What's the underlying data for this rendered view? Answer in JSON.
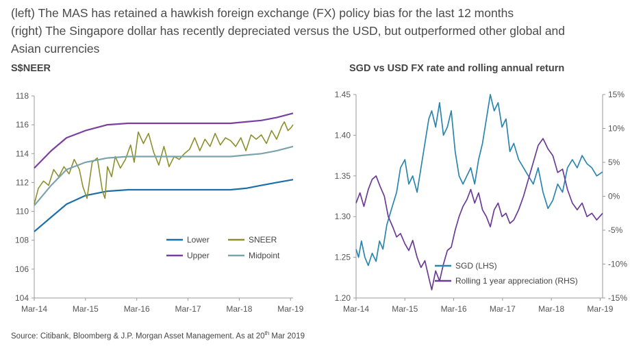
{
  "headline": {
    "line1": "(left) The MAS has retained a hawkish foreign exchange (FX) policy bias for the last 12 months",
    "line2": "(right) The Singapore dollar has recently depreciated versus the USD, but outperformed other global and",
    "line3": "Asian currencies"
  },
  "source": {
    "text": "Source: Citibank, Bloomberg & J.P. Morgan Asset Management. As at 20",
    "superscript": "th",
    "suffix": " Mar 2019"
  },
  "colors": {
    "lower": "#1b6fa8",
    "upper": "#7a3f9e",
    "sneer": "#8c8f2c",
    "midpoint": "#7aa3ab",
    "sgd": "#2a84b0",
    "appreciation": "#6a3a96",
    "axis": "#999999"
  },
  "chart_data": [
    {
      "type": "line",
      "title": "S$NEER",
      "x_ticks": [
        "Mar-14",
        "Mar-15",
        "Mar-16",
        "Mar-17",
        "Mar-18",
        "Mar-19"
      ],
      "y_ticks": [
        "104",
        "106",
        "108",
        "110",
        "112",
        "114",
        "116",
        "118"
      ],
      "ylim": [
        104,
        118
      ],
      "xlim": [
        2014.17,
        2019.22
      ],
      "grid": false,
      "legend_position": "bottom-right",
      "series": [
        {
          "name": "Lower",
          "x": [
            2014.17,
            2014.5,
            2014.8,
            2015.17,
            2015.6,
            2016.0,
            2016.5,
            2017.0,
            2017.5,
            2018.0,
            2018.3,
            2018.6,
            2018.9,
            2019.22
          ],
          "values": [
            108.6,
            109.6,
            110.5,
            111.1,
            111.4,
            111.5,
            111.5,
            111.5,
            111.5,
            111.5,
            111.6,
            111.8,
            112.0,
            112.2
          ]
        },
        {
          "name": "SNEER",
          "x": [
            2014.17,
            2014.25,
            2014.35,
            2014.45,
            2014.55,
            2014.65,
            2014.75,
            2014.85,
            2014.95,
            2015.05,
            2015.12,
            2015.2,
            2015.3,
            2015.4,
            2015.5,
            2015.55,
            2015.6,
            2015.68,
            2015.75,
            2015.85,
            2015.95,
            2016.05,
            2016.12,
            2016.2,
            2016.3,
            2016.4,
            2016.5,
            2016.6,
            2016.7,
            2016.8,
            2016.9,
            2017.0,
            2017.1,
            2017.2,
            2017.3,
            2017.4,
            2017.5,
            2017.6,
            2017.7,
            2017.8,
            2017.9,
            2018.0,
            2018.1,
            2018.2,
            2018.3,
            2018.4,
            2018.5,
            2018.6,
            2018.7,
            2018.8,
            2018.9,
            2019.0,
            2019.05,
            2019.12,
            2019.18,
            2019.22
          ],
          "values": [
            110.5,
            111.6,
            112.1,
            111.8,
            112.9,
            112.4,
            113.1,
            112.6,
            113.6,
            112.9,
            111.7,
            110.9,
            113.4,
            113.7,
            111.4,
            110.9,
            113.1,
            112.4,
            113.8,
            113.0,
            113.6,
            114.6,
            113.4,
            115.5,
            114.7,
            115.4,
            114.1,
            113.2,
            114.5,
            113.1,
            113.8,
            113.6,
            114.0,
            114.3,
            115.1,
            114.2,
            115.0,
            114.5,
            115.4,
            114.6,
            115.1,
            114.9,
            114.5,
            115.1,
            114.2,
            115.3,
            115.0,
            115.3,
            114.7,
            115.6,
            115.0,
            115.9,
            116.2,
            115.6,
            115.8,
            116.0
          ]
        },
        {
          "name": "Upper",
          "x": [
            2014.17,
            2014.5,
            2014.8,
            2015.17,
            2015.6,
            2016.0,
            2016.5,
            2017.0,
            2017.5,
            2018.0,
            2018.3,
            2018.6,
            2018.9,
            2019.22
          ],
          "values": [
            113.0,
            114.2,
            115.1,
            115.6,
            116.0,
            116.1,
            116.1,
            116.1,
            116.1,
            116.1,
            116.2,
            116.3,
            116.5,
            116.8
          ]
        },
        {
          "name": "Midpoint",
          "x": [
            2014.17,
            2014.5,
            2014.8,
            2015.17,
            2015.6,
            2016.0,
            2016.5,
            2017.0,
            2017.5,
            2018.0,
            2018.3,
            2018.6,
            2018.9,
            2019.22
          ],
          "values": [
            110.4,
            111.8,
            112.9,
            113.4,
            113.7,
            113.8,
            113.8,
            113.8,
            113.8,
            113.8,
            113.9,
            114.0,
            114.2,
            114.5
          ]
        }
      ]
    },
    {
      "type": "line",
      "title": "SGD vs USD FX rate and rolling annual return",
      "x_ticks": [
        "Mar-14",
        "Mar-15",
        "Mar-16",
        "Mar-17",
        "Mar-18",
        "Mar-19"
      ],
      "y_ticks_left": [
        "1.20",
        "1.25",
        "1.30",
        "1.35",
        "1.40",
        "1.45"
      ],
      "y_ticks_right": [
        "-15%",
        "-10%",
        "-5%",
        "0%",
        "5%",
        "10%",
        "15%"
      ],
      "ylim_left": [
        1.2,
        1.45
      ],
      "ylim_right": [
        -15,
        15
      ],
      "xlim": [
        2014.17,
        2019.22
      ],
      "grid": false,
      "legend_position": "bottom-center",
      "series": [
        {
          "name": "SGD (LHS)",
          "axis": "left",
          "x": [
            2014.17,
            2014.22,
            2014.28,
            2014.35,
            2014.42,
            2014.5,
            2014.58,
            2014.65,
            2014.72,
            2014.8,
            2014.9,
            2015.0,
            2015.08,
            2015.17,
            2015.25,
            2015.33,
            2015.42,
            2015.5,
            2015.58,
            2015.66,
            2015.72,
            2015.8,
            2015.88,
            2015.96,
            2016.04,
            2016.12,
            2016.2,
            2016.28,
            2016.36,
            2016.44,
            2016.52,
            2016.6,
            2016.68,
            2016.76,
            2016.84,
            2016.92,
            2017.0,
            2017.08,
            2017.16,
            2017.24,
            2017.32,
            2017.4,
            2017.5,
            2017.6,
            2017.7,
            2017.8,
            2017.9,
            2018.0,
            2018.1,
            2018.2,
            2018.3,
            2018.4,
            2018.5,
            2018.6,
            2018.7,
            2018.8,
            2018.9,
            2019.0,
            2019.1,
            2019.22
          ],
          "values": [
            1.26,
            1.25,
            1.27,
            1.25,
            1.24,
            1.255,
            1.245,
            1.27,
            1.26,
            1.29,
            1.31,
            1.33,
            1.36,
            1.37,
            1.34,
            1.35,
            1.33,
            1.36,
            1.39,
            1.42,
            1.43,
            1.41,
            1.44,
            1.4,
            1.41,
            1.43,
            1.38,
            1.35,
            1.34,
            1.35,
            1.36,
            1.34,
            1.37,
            1.39,
            1.42,
            1.45,
            1.43,
            1.44,
            1.41,
            1.42,
            1.38,
            1.39,
            1.37,
            1.36,
            1.35,
            1.34,
            1.36,
            1.33,
            1.31,
            1.32,
            1.34,
            1.33,
            1.36,
            1.37,
            1.36,
            1.375,
            1.365,
            1.36,
            1.35,
            1.355
          ]
        },
        {
          "name": "Rolling 1 year appreciation (RHS)",
          "axis": "right",
          "x": [
            2014.17,
            2014.25,
            2014.33,
            2014.42,
            2014.5,
            2014.58,
            2014.66,
            2014.75,
            2014.83,
            2014.92,
            2015.0,
            2015.08,
            2015.17,
            2015.25,
            2015.33,
            2015.42,
            2015.5,
            2015.58,
            2015.66,
            2015.72,
            2015.8,
            2015.88,
            2015.96,
            2016.04,
            2016.12,
            2016.2,
            2016.28,
            2016.36,
            2016.44,
            2016.52,
            2016.6,
            2016.68,
            2016.76,
            2016.84,
            2016.92,
            2017.0,
            2017.08,
            2017.16,
            2017.24,
            2017.32,
            2017.4,
            2017.5,
            2017.6,
            2017.7,
            2017.8,
            2017.9,
            2018.0,
            2018.1,
            2018.2,
            2018.3,
            2018.4,
            2018.5,
            2018.6,
            2018.7,
            2018.8,
            2018.9,
            2019.0,
            2019.1,
            2019.22
          ],
          "values": [
            -1.0,
            0.5,
            -1.5,
            1.0,
            2.5,
            3.0,
            1.5,
            0.0,
            -3.0,
            -4.5,
            -6.0,
            -5.5,
            -7.0,
            -8.0,
            -6.5,
            -9.0,
            -10.5,
            -9.5,
            -12.0,
            -13.8,
            -11.0,
            -12.5,
            -10.0,
            -8.0,
            -7.5,
            -5.0,
            -3.0,
            -1.5,
            -0.5,
            1.0,
            -1.0,
            0.5,
            -2.0,
            -3.0,
            -4.5,
            -2.0,
            -1.0,
            -3.0,
            -2.5,
            -4.0,
            -3.5,
            -2.0,
            0.0,
            2.5,
            5.0,
            7.5,
            8.5,
            7.0,
            6.0,
            3.5,
            4.0,
            1.0,
            -1.0,
            -2.0,
            -1.0,
            -3.0,
            -2.5,
            -3.5,
            -2.5
          ]
        }
      ]
    }
  ]
}
